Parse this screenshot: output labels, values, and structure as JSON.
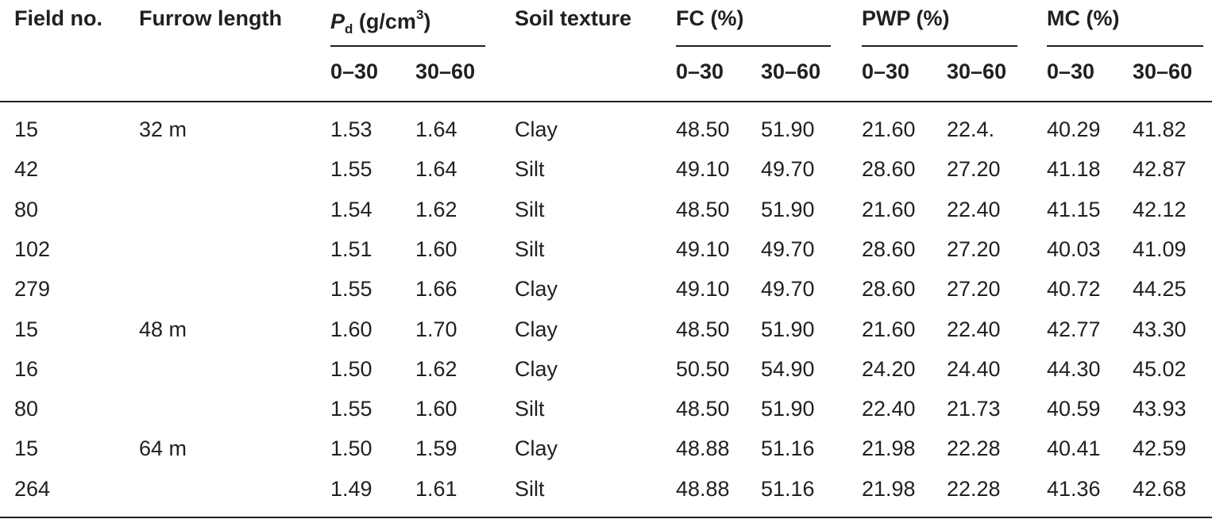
{
  "header": {
    "field": "Field no.",
    "furrow": "Furrow length",
    "pd": {
      "symbol": "P",
      "sub": "d",
      "unit": "(g/cm",
      "sup": "3",
      "close": ")"
    },
    "soil": "Soil texture",
    "fc": "FC (%)",
    "pwp": "PWP (%)",
    "mc": "MC (%)",
    "depths": [
      "0–30",
      "30–60"
    ]
  },
  "table": {
    "rows": [
      [
        "15",
        "32 m",
        "1.53",
        "1.64",
        "Clay",
        "48.50",
        "51.90",
        "21.60",
        "22.4.",
        "40.29",
        "41.82"
      ],
      [
        "42",
        null,
        "1.55",
        "1.64",
        "Silt",
        "49.10",
        "49.70",
        "28.60",
        "27.20",
        "41.18",
        "42.87"
      ],
      [
        "80",
        null,
        "1.54",
        "1.62",
        "Silt",
        "48.50",
        "51.90",
        "21.60",
        "22.40",
        "41.15",
        "42.12"
      ],
      [
        "102",
        null,
        "1.51",
        "1.60",
        "Silt",
        "49.10",
        "49.70",
        "28.60",
        "27.20",
        "40.03",
        "41.09"
      ],
      [
        "279",
        null,
        "1.55",
        "1.66",
        "Clay",
        "49.10",
        "49.70",
        "28.60",
        "27.20",
        "40.72",
        "44.25"
      ],
      [
        "15",
        "48 m",
        "1.60",
        "1.70",
        "Clay",
        "48.50",
        "51.90",
        "21.60",
        "22.40",
        "42.77",
        "43.30"
      ],
      [
        "16",
        null,
        "1.50",
        "1.62",
        "Clay",
        "50.50",
        "54.90",
        "24.20",
        "24.40",
        "44.30",
        "45.02"
      ],
      [
        "80",
        null,
        "1.55",
        "1.60",
        "Silt",
        "48.50",
        "51.90",
        "22.40",
        "21.73",
        "40.59",
        "43.93"
      ],
      [
        "15",
        "64 m",
        "1.50",
        "1.59",
        "Clay",
        "48.88",
        "51.16",
        "21.98",
        "22.28",
        "40.41",
        "42.59"
      ],
      [
        "264",
        null,
        "1.49",
        "1.61",
        "Silt",
        "48.88",
        "51.16",
        "21.98",
        "22.28",
        "41.36",
        "42.68"
      ]
    ]
  }
}
